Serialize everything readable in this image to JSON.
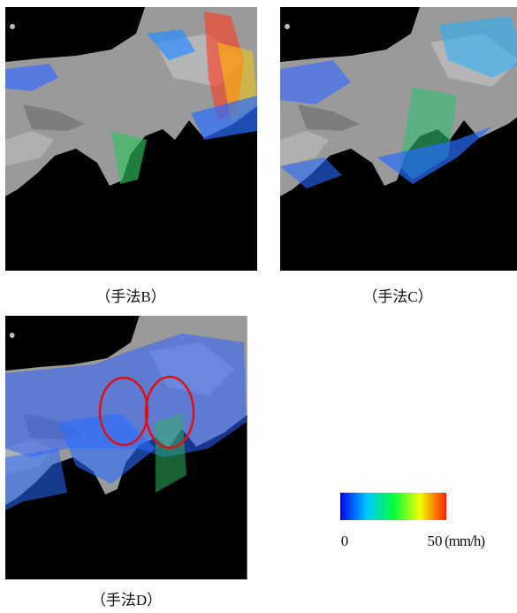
{
  "panels": [
    {
      "caption": "（手法B）"
    },
    {
      "caption": "（手法C）"
    },
    {
      "caption": "（手法D）"
    }
  ],
  "colorbar": {
    "min_label": 0,
    "max_label": 50,
    "unit": "(mm/h)"
  }
}
